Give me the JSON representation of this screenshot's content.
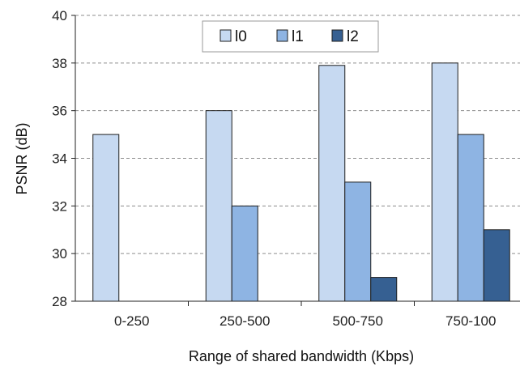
{
  "chart_data": {
    "type": "bar",
    "title": "",
    "xlabel": "Range of shared bandwidth (Kbps)",
    "ylabel": "PSNR (dB)",
    "ylim": [
      28,
      40
    ],
    "yticks": [
      28,
      30,
      32,
      34,
      36,
      38,
      40
    ],
    "grid": true,
    "legend_position": "top-center",
    "categories": [
      "0-250",
      "250-500",
      "500-750",
      "750-100"
    ],
    "series": [
      {
        "name": "l0",
        "color": "#c6d9f1",
        "values": [
          35,
          36,
          37.9,
          38
        ]
      },
      {
        "name": "l1",
        "color": "#8eb4e3",
        "values": [
          null,
          32,
          33,
          35
        ]
      },
      {
        "name": "l2",
        "color": "#366092",
        "values": [
          null,
          null,
          29,
          31
        ]
      }
    ]
  }
}
